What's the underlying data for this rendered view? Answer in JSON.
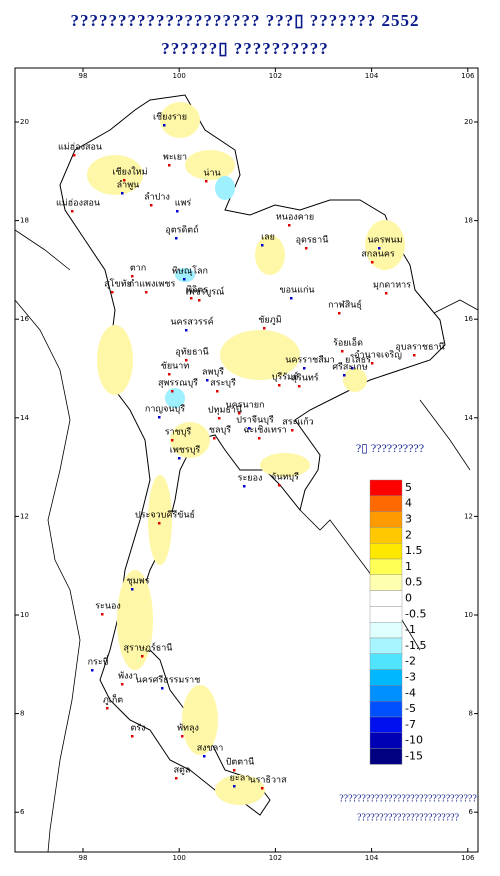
{
  "header": {
    "title_line1": "???????????????????? ???▯ ??????? 2552",
    "title_line2": "??????▯ ??????????"
  },
  "map": {
    "xticks": [
      98,
      100,
      102,
      104,
      106
    ],
    "yticks": [
      20,
      18,
      16,
      14,
      12,
      10,
      8,
      6
    ],
    "provinces": [
      "เชียงราย",
      "แม่ฮ่องสอน",
      "เชียงใหม่",
      "ลำพูน",
      "พะเยา",
      "น่าน",
      "แพร่",
      "ลำปาง",
      "แม่ฮ่องสอน",
      "อุตรดิตถ์",
      "ตาก",
      "สุโขทัย",
      "พิษณุโลก",
      "กำแพงเพชร",
      "พิจิตร",
      "เลย",
      "หนองคาย",
      "อุดรธานี",
      "นครพนม",
      "สกลนคร",
      "มุกดาหาร",
      "ขอนแก่น",
      "กาฬสินธุ์",
      "เพชรบูรณ์",
      "นครสวรรค์",
      "ชัยภูมิ",
      "ร้อยเอ็ด",
      "ยโสธร",
      "อุบลราชธานี",
      "อำนาจเจริญ",
      "ศรีสะเกษ",
      "สุรินทร์",
      "บุรีรัมย์",
      "นครราชสีมา",
      "อุทัยธานี",
      "ชัยนาท",
      "ลพบุรี",
      "สระบุรี",
      "สุพรรณบุรี",
      "กาญจนบุรี",
      "ปทุมธานี",
      "นครนายก",
      "ปราจีนบุรี",
      "สระแก้ว",
      "ราชบุรี",
      "เพชรบุรี",
      "ชลบุรี",
      "ฉะเชิงเทรา",
      "ระยอง",
      "จันทบุรี",
      "ประจวบคีรีขันธ์",
      "ชุมพร",
      "ระนอง",
      "สุราษฎร์ธานี",
      "กระบี่",
      "พังงา",
      "ภูเก็ต",
      "นครศรีธรรมราช",
      "ตรัง",
      "พัทลุง",
      "สงขลา",
      "สตูล",
      "ปัตตานี",
      "ยะลา",
      "นราธิวาส"
    ]
  },
  "legend": {
    "note": "?▯ ??????????",
    "values": [
      5,
      4,
      3,
      2,
      1.5,
      1,
      0.5,
      0,
      -0.5,
      -1,
      -1.5,
      -2,
      -3,
      -4,
      -5,
      -7,
      -10,
      -15
    ],
    "colors": [
      "#ff0000",
      "#ff6a00",
      "#ff9a00",
      "#ffc800",
      "#ffe800",
      "#ffff55",
      "#ffffb0",
      "#ffffff",
      "#ffffff",
      "#e0ffff",
      "#a8f4ff",
      "#50e4ff",
      "#00b8ff",
      "#0090ff",
      "#0050ff",
      "#0010ee",
      "#0000b4",
      "#000080"
    ]
  },
  "footer": {
    "line1": "???????????????????????????????",
    "line2": "???????????????????????"
  }
}
